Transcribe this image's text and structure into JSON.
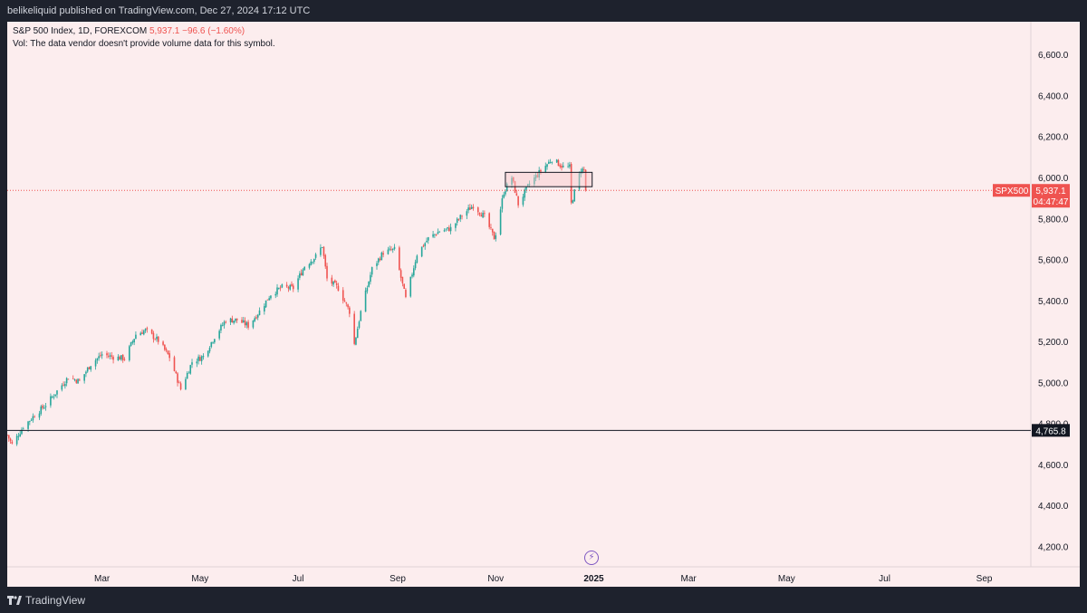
{
  "header": {
    "publish_text": "belikeliquid published on TradingView.com, Dec 27, 2024 17:12 UTC"
  },
  "legend": {
    "symbol_text": "S&P 500 Index, 1D, FOREXCOM",
    "price": "5,937.1",
    "change": "−96.6 (−1.60%)",
    "vol_text": "Vol: The data vendor doesn't provide volume data for this symbol."
  },
  "footer": {
    "brand": "TradingView"
  },
  "colors": {
    "up": "#26a69a",
    "down": "#ef5350",
    "background": "#fcedee",
    "price_line": "#ef5350",
    "hline": "#131722",
    "box_fill": "#f8c9cc"
  },
  "chart_data": {
    "type": "candlestick",
    "symbol": "SPX500",
    "interval": "1D",
    "x_ticks": [
      "Mar",
      "May",
      "Jul",
      "Sep",
      "Nov",
      "2025",
      "Mar",
      "May",
      "Jul",
      "Sep"
    ],
    "y_ticks": [
      "6,600.0",
      "6,400.0",
      "6,200.0",
      "6,000.0",
      "5,800.0",
      "5,600.0",
      "5,400.0",
      "5,200.0",
      "5,000.0",
      "4,800.0",
      "4,600.0",
      "4,400.0",
      "4,200.0"
    ],
    "y_tick_values": [
      6600,
      6400,
      6200,
      6000,
      5800,
      5600,
      5400,
      5200,
      5000,
      4800,
      4600,
      4400,
      4200
    ],
    "ylim": [
      4100,
      6760
    ],
    "x_range": [
      "2024-01-02",
      "2025-09-30"
    ],
    "last_price_label": {
      "symbol": "SPX500",
      "price": "5,937.1",
      "countdown": "04:47:47",
      "value": 5937.1
    },
    "horizontal_line": {
      "value": 4765.8,
      "label": "4,765.8"
    },
    "rectangles": [
      {
        "from_date": "2024-11-07",
        "to_date": "2024-12-31",
        "top": 6025,
        "bottom": 5955
      }
    ],
    "close_path": [
      [
        "2024-01-02",
        4743
      ],
      [
        "2024-01-05",
        4697
      ],
      [
        "2024-01-12",
        4784
      ],
      [
        "2024-01-19",
        4840
      ],
      [
        "2024-01-26",
        4891
      ],
      [
        "2024-02-02",
        4958
      ],
      [
        "2024-02-09",
        5026
      ],
      [
        "2024-02-16",
        5005
      ],
      [
        "2024-02-23",
        5089
      ],
      [
        "2024-03-01",
        5137
      ],
      [
        "2024-03-08",
        5124
      ],
      [
        "2024-03-15",
        5117
      ],
      [
        "2024-03-22",
        5234
      ],
      [
        "2024-03-28",
        5254
      ],
      [
        "2024-04-05",
        5204
      ],
      [
        "2024-04-12",
        5123
      ],
      [
        "2024-04-19",
        4967
      ],
      [
        "2024-04-26",
        5100
      ],
      [
        "2024-05-03",
        5127
      ],
      [
        "2024-05-10",
        5223
      ],
      [
        "2024-05-17",
        5303
      ],
      [
        "2024-05-24",
        5305
      ],
      [
        "2024-05-31",
        5277
      ],
      [
        "2024-06-07",
        5347
      ],
      [
        "2024-06-14",
        5431
      ],
      [
        "2024-06-21",
        5464
      ],
      [
        "2024-06-28",
        5460
      ],
      [
        "2024-07-05",
        5567
      ],
      [
        "2024-07-12",
        5615
      ],
      [
        "2024-07-16",
        5667
      ],
      [
        "2024-07-19",
        5505
      ],
      [
        "2024-07-26",
        5459
      ],
      [
        "2024-08-02",
        5346
      ],
      [
        "2024-08-05",
        5186
      ],
      [
        "2024-08-09",
        5344
      ],
      [
        "2024-08-16",
        5554
      ],
      [
        "2024-08-23",
        5634
      ],
      [
        "2024-08-30",
        5648
      ],
      [
        "2024-09-06",
        5408
      ],
      [
        "2024-09-13",
        5626
      ],
      [
        "2024-09-20",
        5702
      ],
      [
        "2024-09-27",
        5738
      ],
      [
        "2024-10-04",
        5751
      ],
      [
        "2024-10-11",
        5815
      ],
      [
        "2024-10-18",
        5864
      ],
      [
        "2024-10-25",
        5808
      ],
      [
        "2024-10-31",
        5705
      ],
      [
        "2024-11-01",
        5728
      ],
      [
        "2024-11-06",
        5929
      ],
      [
        "2024-11-11",
        6001
      ],
      [
        "2024-11-15",
        5870
      ],
      [
        "2024-11-22",
        5969
      ],
      [
        "2024-11-29",
        6032
      ],
      [
        "2024-12-06",
        6090
      ],
      [
        "2024-12-13",
        6051
      ],
      [
        "2024-12-17",
        6050
      ],
      [
        "2024-12-18",
        5872
      ],
      [
        "2024-12-20",
        5930
      ],
      [
        "2024-12-24",
        6040
      ],
      [
        "2024-12-26",
        6037
      ],
      [
        "2024-12-27",
        5937.1
      ]
    ]
  }
}
